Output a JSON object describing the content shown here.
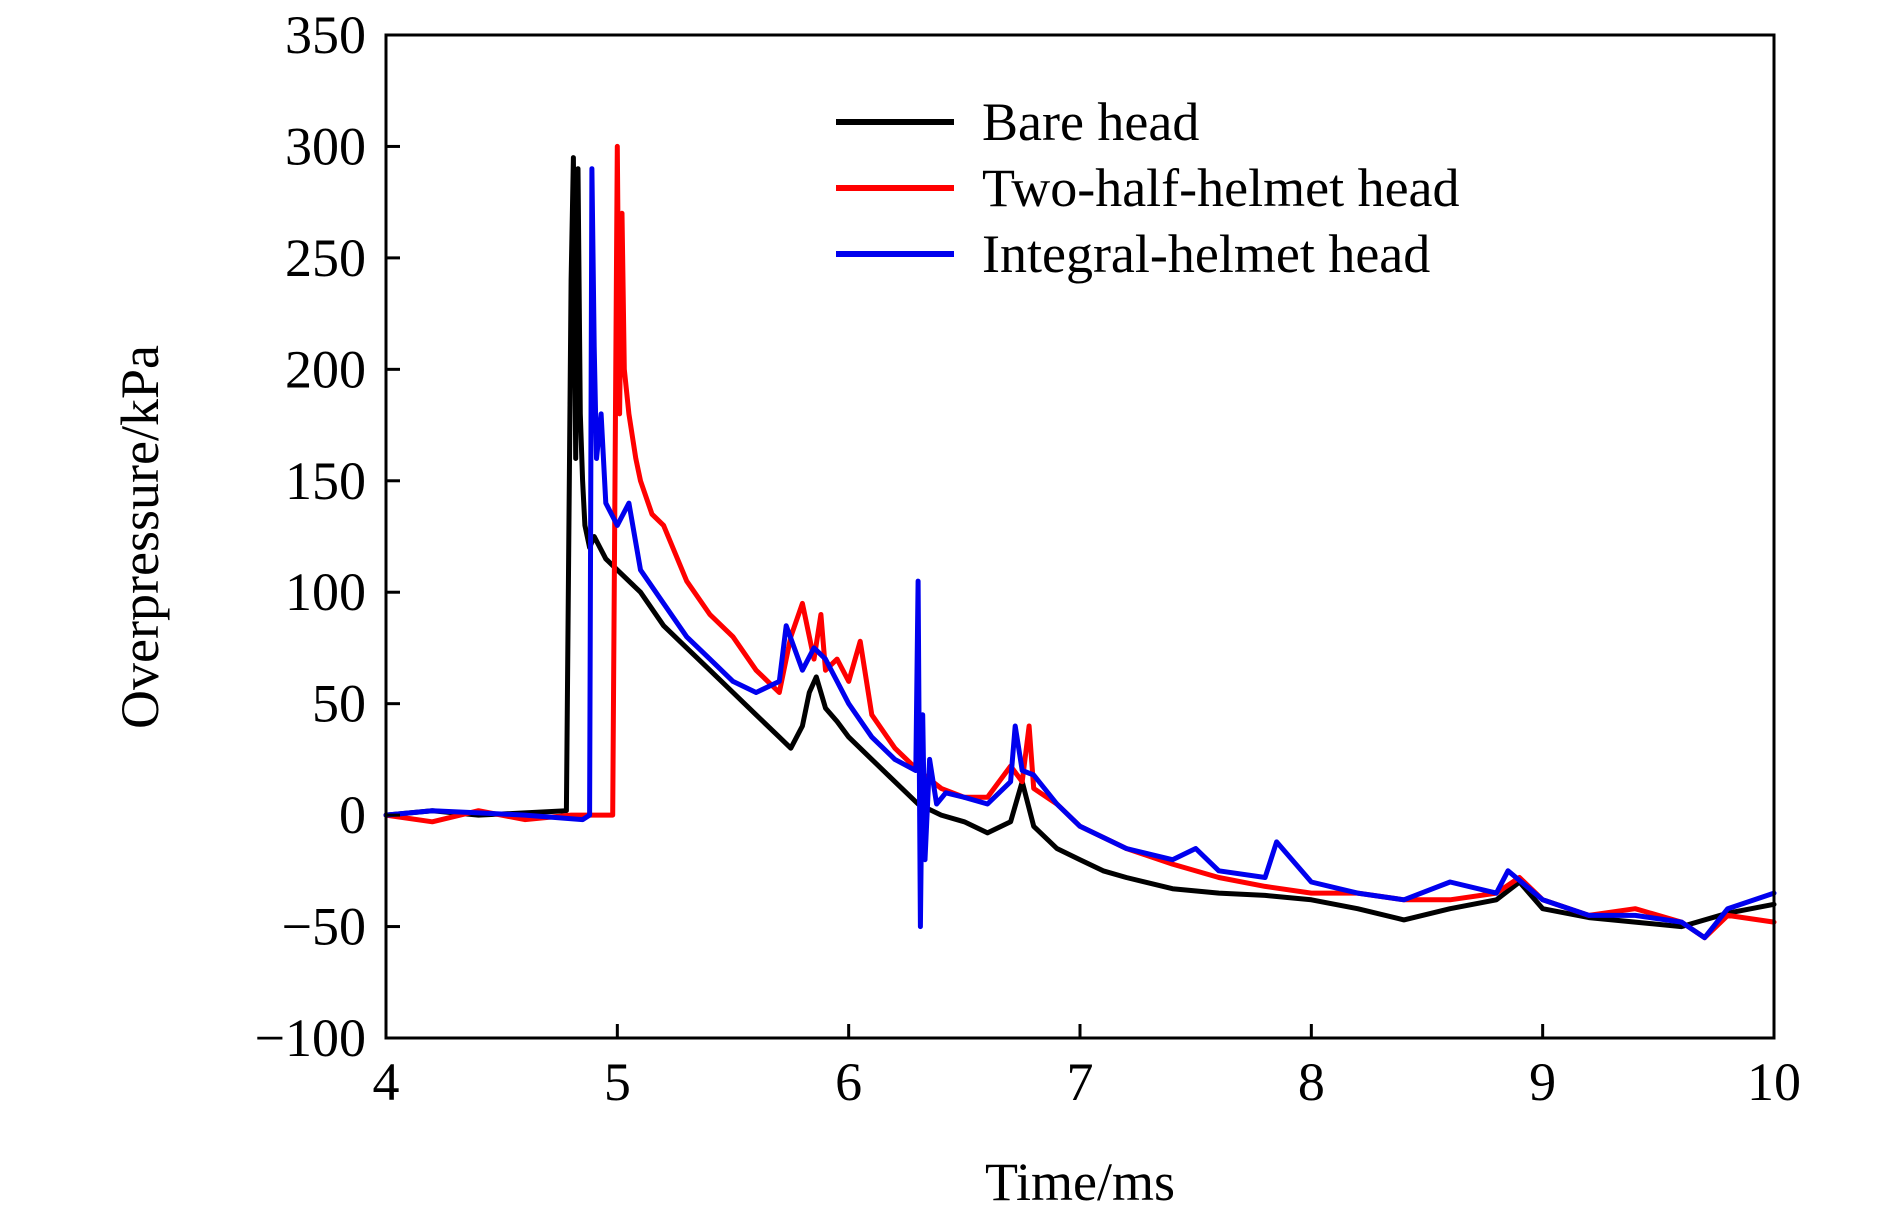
{
  "chart_data": {
    "type": "line",
    "xlabel": "Time/ms",
    "ylabel": "Overpressure/kPa",
    "xlim": [
      4,
      10
    ],
    "ylim": [
      -100,
      350
    ],
    "xticks": [
      4,
      5,
      6,
      7,
      8,
      9,
      10
    ],
    "yticks": [
      -100,
      -50,
      0,
      50,
      100,
      150,
      200,
      250,
      300,
      350
    ],
    "xtick_labels": [
      "4",
      "5",
      "6",
      "7",
      "8",
      "9",
      "10"
    ],
    "ytick_labels": [
      "−100",
      "−50",
      "0",
      "50",
      "100",
      "150",
      "200",
      "250",
      "300",
      "350"
    ],
    "grid": false,
    "legend_position": "top-right",
    "series": [
      {
        "name": "Bare head",
        "color": "#000000",
        "x": [
          4.0,
          4.2,
          4.4,
          4.6,
          4.78,
          4.8,
          4.81,
          4.82,
          4.83,
          4.84,
          4.85,
          4.86,
          4.88,
          4.9,
          4.95,
          5.0,
          5.1,
          5.2,
          5.3,
          5.4,
          5.5,
          5.6,
          5.7,
          5.75,
          5.8,
          5.83,
          5.86,
          5.88,
          5.9,
          5.95,
          6.0,
          6.1,
          6.2,
          6.3,
          6.4,
          6.5,
          6.6,
          6.7,
          6.75,
          6.8,
          6.9,
          7.0,
          7.1,
          7.2,
          7.4,
          7.6,
          7.8,
          8.0,
          8.2,
          8.4,
          8.6,
          8.8,
          8.9,
          9.0,
          9.2,
          9.4,
          9.6,
          9.8,
          10.0
        ],
        "y": [
          0,
          2,
          0,
          1,
          2,
          240,
          295,
          160,
          290,
          180,
          150,
          130,
          120,
          125,
          115,
          110,
          100,
          85,
          75,
          65,
          55,
          45,
          35,
          30,
          40,
          55,
          62,
          55,
          48,
          42,
          35,
          25,
          15,
          5,
          0,
          -3,
          -8,
          -3,
          15,
          -5,
          -15,
          -20,
          -25,
          -28,
          -33,
          -35,
          -36,
          -38,
          -42,
          -47,
          -42,
          -38,
          -30,
          -42,
          -46,
          -48,
          -50,
          -44,
          -40
        ]
      },
      {
        "name": "Two-half-helmet head",
        "color": "#ff0000",
        "x": [
          4.0,
          4.2,
          4.4,
          4.6,
          4.8,
          4.98,
          5.0,
          5.01,
          5.02,
          5.03,
          5.05,
          5.08,
          5.1,
          5.15,
          5.2,
          5.3,
          5.4,
          5.5,
          5.6,
          5.7,
          5.75,
          5.8,
          5.85,
          5.88,
          5.9,
          5.95,
          6.0,
          6.05,
          6.1,
          6.2,
          6.3,
          6.4,
          6.5,
          6.6,
          6.7,
          6.75,
          6.78,
          6.8,
          6.9,
          7.0,
          7.2,
          7.4,
          7.6,
          7.8,
          8.0,
          8.2,
          8.4,
          8.6,
          8.8,
          8.9,
          9.0,
          9.2,
          9.4,
          9.6,
          9.7,
          9.8,
          10.0
        ],
        "y": [
          0,
          -3,
          2,
          -2,
          0,
          0,
          300,
          180,
          270,
          200,
          180,
          160,
          150,
          135,
          130,
          105,
          90,
          80,
          65,
          55,
          80,
          95,
          70,
          90,
          65,
          70,
          60,
          78,
          45,
          30,
          20,
          12,
          8,
          8,
          22,
          15,
          40,
          12,
          5,
          -5,
          -15,
          -22,
          -28,
          -32,
          -35,
          -35,
          -38,
          -38,
          -35,
          -28,
          -38,
          -45,
          -42,
          -48,
          -55,
          -45,
          -48
        ]
      },
      {
        "name": "Integral-helmet head",
        "color": "#0000ee",
        "x": [
          4.0,
          4.2,
          4.4,
          4.6,
          4.85,
          4.88,
          4.89,
          4.9,
          4.91,
          4.93,
          4.95,
          5.0,
          5.05,
          5.1,
          5.2,
          5.3,
          5.4,
          5.5,
          5.6,
          5.7,
          5.73,
          5.8,
          5.85,
          5.9,
          5.95,
          6.0,
          6.1,
          6.2,
          6.29,
          6.3,
          6.31,
          6.32,
          6.33,
          6.35,
          6.38,
          6.42,
          6.5,
          6.6,
          6.7,
          6.72,
          6.75,
          6.8,
          6.9,
          7.0,
          7.2,
          7.4,
          7.5,
          7.6,
          7.8,
          7.85,
          8.0,
          8.2,
          8.4,
          8.6,
          8.8,
          8.85,
          9.0,
          9.2,
          9.4,
          9.6,
          9.7,
          9.8,
          10.0
        ],
        "y": [
          0,
          2,
          1,
          0,
          -2,
          0,
          290,
          210,
          160,
          180,
          140,
          130,
          140,
          110,
          95,
          80,
          70,
          60,
          55,
          60,
          85,
          65,
          75,
          70,
          60,
          50,
          35,
          25,
          20,
          105,
          -50,
          45,
          -20,
          25,
          5,
          10,
          8,
          5,
          15,
          40,
          20,
          18,
          5,
          -5,
          -15,
          -20,
          -15,
          -25,
          -28,
          -12,
          -30,
          -35,
          -38,
          -30,
          -35,
          -25,
          -38,
          -45,
          -45,
          -48,
          -55,
          -42,
          -35
        ]
      }
    ]
  }
}
